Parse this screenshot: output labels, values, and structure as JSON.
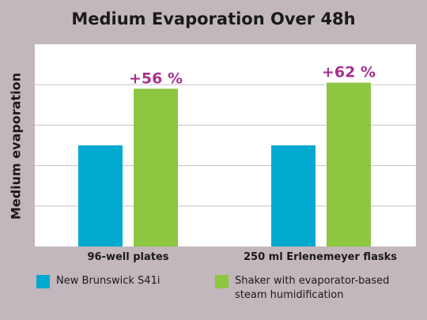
{
  "chart_data": {
    "type": "bar",
    "title": "Medium Evaporation Over 48h",
    "xlabel": "",
    "ylabel": "Medium evaporation",
    "categories": [
      "96-well plates",
      "250 ml Erlenemeyer flasks"
    ],
    "series": [
      {
        "name": "New Brunswick S41i",
        "values": [
          100,
          100
        ],
        "color": "#00a9cf"
      },
      {
        "name": "Shaker with evaporator-based steam humidification",
        "values": [
          156,
          162
        ],
        "color": "#8dc63f"
      }
    ],
    "annotations": [
      "+56 %",
      "+62 %"
    ],
    "annotation_color": "#a9308f",
    "ylim": [
      0,
      200
    ],
    "grid": true,
    "legend_position": "bottom",
    "legend_labels": [
      "New Brunswick S41i",
      "Shaker with evaporator-based",
      "steam humidification"
    ]
  }
}
